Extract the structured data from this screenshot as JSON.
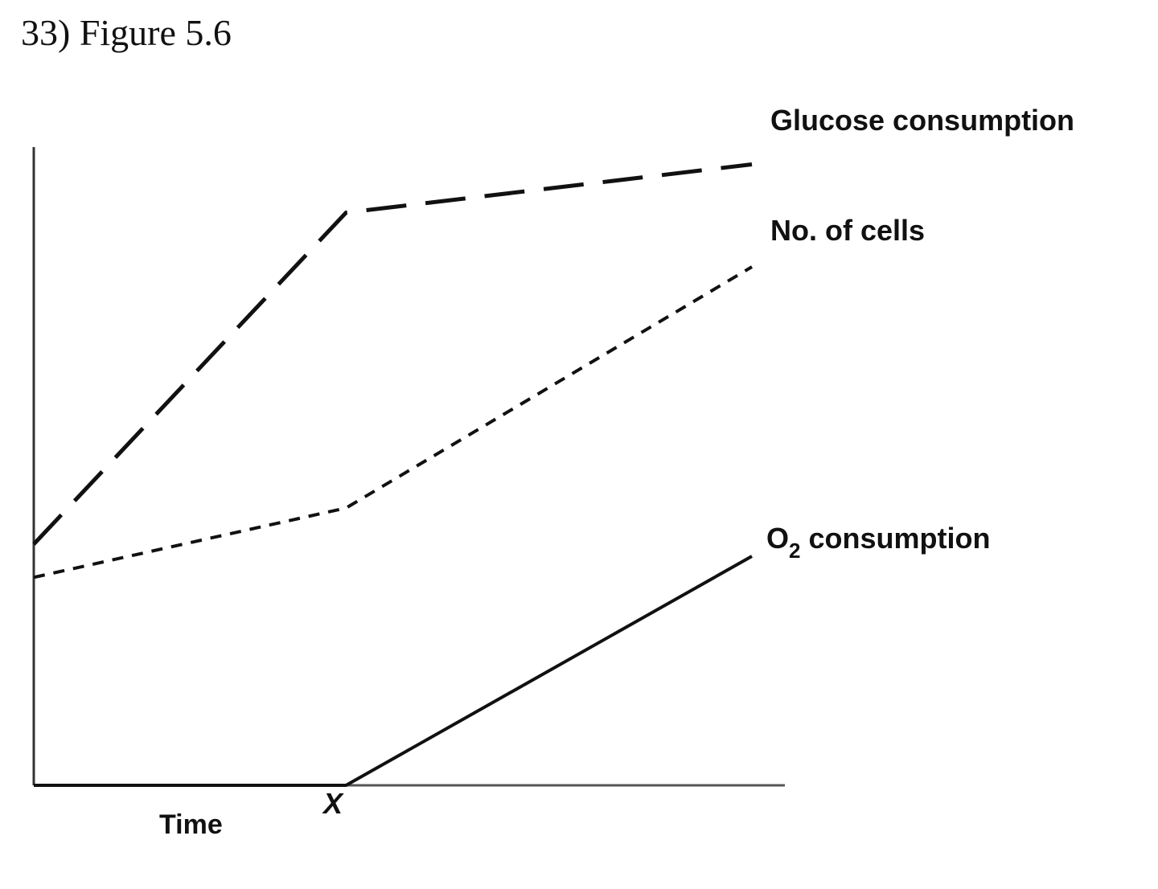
{
  "figure_title": "33) Figure 5.6",
  "chart_data": {
    "type": "line",
    "title": "33) Figure 5.6",
    "xlabel": "Time",
    "ylabel": "",
    "x_ticks": [
      {
        "value": 1,
        "label": "X"
      }
    ],
    "xlim": [
      0,
      2.3
    ],
    "ylim": [
      0,
      100
    ],
    "grid": false,
    "legend": "labels at line ends (right)",
    "series": [
      {
        "name": "Glucose consumption",
        "style": "long-dash",
        "x": [
          0,
          1,
          2.3
        ],
        "y": [
          40,
          95,
          103
        ]
      },
      {
        "name": "No. of cells",
        "style": "short-dash",
        "x": [
          0,
          1,
          2.3
        ],
        "y": [
          34.5,
          46,
          86
        ]
      },
      {
        "name": "O2 consumption",
        "label_main": "O",
        "label_sub": "2",
        "label_rest": " consumption",
        "style": "solid",
        "x": [
          0,
          1,
          2.3
        ],
        "y": [
          0,
          0,
          38
        ]
      }
    ]
  }
}
